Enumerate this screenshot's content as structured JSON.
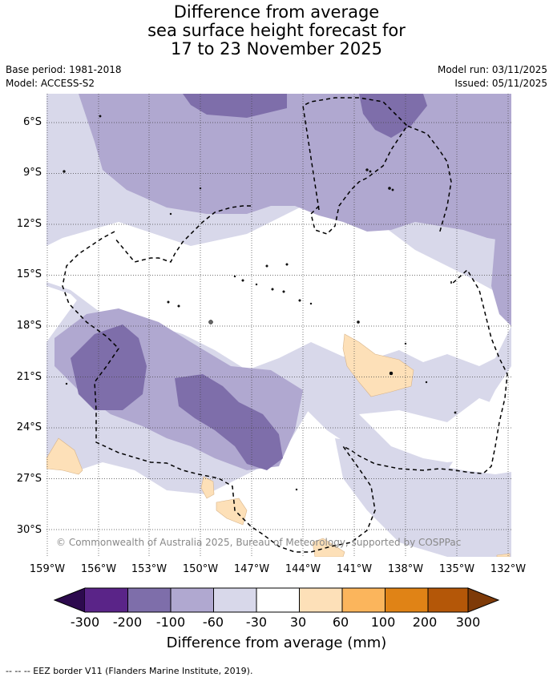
{
  "title": {
    "line1": "Difference from average",
    "line2": "sea surface height forecast for",
    "line3": "17 to 23 November 2025"
  },
  "meta": {
    "base_period": "Base period: 1981-2018",
    "model": "Model: ACCESS-S2",
    "model_run": "Model run: 03/11/2025",
    "issued": "Issued: 05/11/2025"
  },
  "map": {
    "lat_labels": [
      "6°S",
      "9°S",
      "12°S",
      "15°S",
      "18°S",
      "21°S",
      "24°S",
      "27°S",
      "30°S"
    ],
    "lon_labels": [
      "159°W",
      "156°W",
      "153°W",
      "150°W",
      "147°W",
      "144°W",
      "141°W",
      "138°W",
      "135°W",
      "132°W"
    ],
    "copyright": "© Commonwealth of Australia 2025, Bureau of Meteorology, supported by COSPPac",
    "colors": {
      "neg300": "#2d0a4e",
      "neg200": "#5a2488",
      "neg100": "#7e6eaa",
      "neg60": "#b0a8d0",
      "neg30": "#d8d8ea",
      "zero": "#ffffff",
      "pos30": "#fde0b8",
      "pos60": "#fbb55c",
      "pos100": "#e08316",
      "pos200": "#b45708",
      "pos300": "#7e3a08"
    }
  },
  "colorbar": {
    "labels": [
      "-300",
      "-200",
      "-100",
      "-60",
      "-30",
      "30",
      "60",
      "100",
      "200",
      "300"
    ],
    "title": "Difference from average (mm)"
  },
  "footer": {
    "legend_text": "--  --  -- EEZ border V11 (Flanders Marine Institute, 2019)."
  }
}
